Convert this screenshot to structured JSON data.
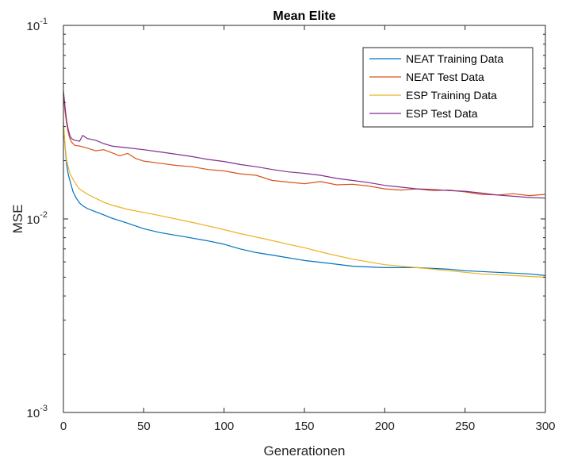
{
  "chart_data": {
    "type": "line",
    "title": "Mean Elite",
    "xlabel": "Generationen",
    "ylabel": "MSE",
    "xlim": [
      0,
      300
    ],
    "ylim": [
      0.001,
      0.1
    ],
    "yscale": "log",
    "xticks": [
      "0",
      "50",
      "100",
      "150",
      "200",
      "250",
      "300"
    ],
    "yticks": [
      {
        "base": "10",
        "exp": "-3"
      },
      {
        "base": "10",
        "exp": "-2"
      },
      {
        "base": "10",
        "exp": "-1"
      }
    ],
    "grid": false,
    "legend_position": "top-right",
    "series": [
      {
        "name": "NEAT Training Data",
        "color": "#0072BD",
        "x": [
          0,
          1,
          2,
          3,
          4,
          5,
          6,
          8,
          10,
          12,
          15,
          20,
          25,
          30,
          40,
          50,
          60,
          75,
          90,
          100,
          110,
          120,
          130,
          140,
          150,
          165,
          180,
          200,
          220,
          240,
          250,
          270,
          290,
          300
        ],
        "y": [
          0.03,
          0.024,
          0.019,
          0.017,
          0.0158,
          0.0148,
          0.0138,
          0.0128,
          0.0121,
          0.0117,
          0.0113,
          0.0109,
          0.0105,
          0.0101,
          0.0095,
          0.0089,
          0.0085,
          0.0081,
          0.0077,
          0.0074,
          0.007,
          0.0067,
          0.0065,
          0.0063,
          0.0061,
          0.0059,
          0.0057,
          0.0056,
          0.0056,
          0.0055,
          0.0054,
          0.0053,
          0.0052,
          0.0051
        ]
      },
      {
        "name": "NEAT Test Data",
        "color": "#D95319",
        "x": [
          0,
          1,
          2,
          3,
          4,
          5,
          7,
          10,
          15,
          20,
          25,
          30,
          35,
          40,
          45,
          50,
          60,
          70,
          80,
          90,
          100,
          110,
          120,
          130,
          140,
          150,
          160,
          170,
          180,
          190,
          200,
          210,
          220,
          230,
          240,
          250,
          260,
          270,
          280,
          290,
          300
        ],
        "y": [
          0.044,
          0.036,
          0.031,
          0.028,
          0.026,
          0.025,
          0.024,
          0.0238,
          0.0232,
          0.0225,
          0.0228,
          0.022,
          0.0212,
          0.0218,
          0.0205,
          0.0199,
          0.0194,
          0.0189,
          0.0186,
          0.018,
          0.0177,
          0.0171,
          0.0168,
          0.0158,
          0.0155,
          0.0152,
          0.0156,
          0.015,
          0.0151,
          0.0148,
          0.0143,
          0.0141,
          0.0143,
          0.014,
          0.0141,
          0.0138,
          0.0134,
          0.0133,
          0.0135,
          0.0132,
          0.0134
        ]
      },
      {
        "name": "ESP Training Data",
        "color": "#EDB120",
        "x": [
          0,
          1,
          2,
          3,
          4,
          6,
          8,
          10,
          15,
          20,
          25,
          30,
          40,
          50,
          60,
          75,
          90,
          100,
          110,
          125,
          140,
          150,
          165,
          180,
          200,
          220,
          240,
          260,
          280,
          300
        ],
        "y": [
          0.032,
          0.024,
          0.02,
          0.0185,
          0.0172,
          0.016,
          0.015,
          0.0143,
          0.0134,
          0.0128,
          0.0122,
          0.0118,
          0.0112,
          0.0108,
          0.0104,
          0.0098,
          0.0092,
          0.0088,
          0.0084,
          0.0079,
          0.0074,
          0.0071,
          0.0066,
          0.0062,
          0.0058,
          0.0056,
          0.0054,
          0.0052,
          0.0051,
          0.005
        ]
      },
      {
        "name": "ESP Test Data",
        "color": "#7E2F8E",
        "x": [
          0,
          1,
          2,
          3,
          4,
          5,
          7,
          10,
          12,
          15,
          20,
          25,
          30,
          40,
          50,
          60,
          70,
          80,
          90,
          100,
          110,
          120,
          130,
          140,
          150,
          160,
          170,
          180,
          190,
          200,
          210,
          220,
          230,
          240,
          250,
          260,
          270,
          280,
          290,
          300
        ],
        "y": [
          0.046,
          0.038,
          0.032,
          0.029,
          0.027,
          0.026,
          0.0255,
          0.0252,
          0.027,
          0.026,
          0.0255,
          0.0245,
          0.0238,
          0.0233,
          0.0228,
          0.0222,
          0.0216,
          0.021,
          0.0203,
          0.0198,
          0.0191,
          0.0186,
          0.018,
          0.0175,
          0.0172,
          0.0168,
          0.0162,
          0.0158,
          0.0154,
          0.0149,
          0.0146,
          0.0143,
          0.0142,
          0.014,
          0.0139,
          0.0136,
          0.0133,
          0.0131,
          0.0129,
          0.0128
        ]
      }
    ]
  }
}
